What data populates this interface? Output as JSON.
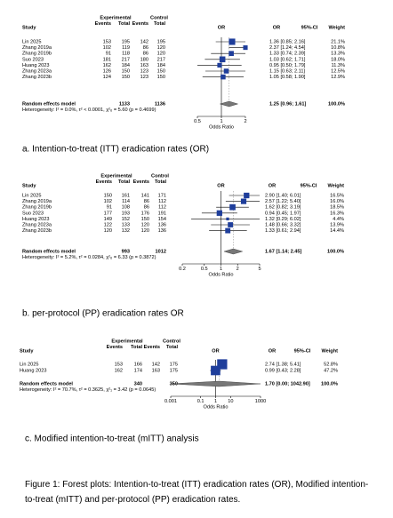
{
  "chart_data": [
    {
      "type": "forest",
      "columns": {
        "experimental": "Experimental",
        "control": "Control",
        "study": "Study",
        "events_e": "Events",
        "total_e": "Total",
        "events_c": "Events",
        "total_c": "Total",
        "plot": "OR",
        "or": "OR",
        "ci": "95%-CI",
        "weight": "Weight"
      },
      "studies": [
        {
          "name": "Lin 2025",
          "e_events": 153,
          "e_total": 195,
          "c_events": 142,
          "c_total": 195,
          "or": 1.36,
          "ci": [
            0.85,
            2.16
          ],
          "label": "1.36 [0.85; 2.16]",
          "weight": 21.1,
          "weight_label": "21.1%"
        },
        {
          "name": "Zhang 2019a",
          "e_events": 102,
          "e_total": 119,
          "c_events": 86,
          "c_total": 120,
          "or": 2.37,
          "ci": [
            1.24,
            4.54
          ],
          "label": "2.37 [1.24; 4.54]",
          "weight": 10.8,
          "weight_label": "10.8%"
        },
        {
          "name": "Zhang 2019b",
          "e_events": 91,
          "e_total": 118,
          "c_events": 86,
          "c_total": 120,
          "or": 1.33,
          "ci": [
            0.74,
            2.39
          ],
          "label": "1.33 [0.74; 2.39]",
          "weight": 13.3,
          "weight_label": "13.3%"
        },
        {
          "name": "Suo 2023",
          "e_events": 181,
          "e_total": 217,
          "c_events": 180,
          "c_total": 217,
          "or": 1.03,
          "ci": [
            0.62,
            1.71
          ],
          "label": "1.03 [0.62; 1.71]",
          "weight": 18.0,
          "weight_label": "18.0%"
        },
        {
          "name": "Huang 2023",
          "e_events": 162,
          "e_total": 184,
          "c_events": 163,
          "c_total": 184,
          "or": 0.95,
          "ci": [
            0.5,
            1.79
          ],
          "label": "0.95 [0.50; 1.79]",
          "weight": 11.3,
          "weight_label": "11.3%"
        },
        {
          "name": "Zhang 2023a",
          "e_events": 126,
          "e_total": 150,
          "c_events": 123,
          "c_total": 150,
          "or": 1.15,
          "ci": [
            0.63,
            2.11
          ],
          "label": "1.15 [0.63; 2.11]",
          "weight": 12.5,
          "weight_label": "12.5%"
        },
        {
          "name": "Zhang 2023b",
          "e_events": 124,
          "e_total": 150,
          "c_events": 123,
          "c_total": 150,
          "or": 1.05,
          "ci": [
            0.58,
            1.9
          ],
          "label": "1.05 [0.58; 1.90]",
          "weight": 12.9,
          "weight_label": "12.9%"
        }
      ],
      "pooled": {
        "name": "Random effects model",
        "e_total": 1133,
        "c_total": 1136,
        "or": 1.25,
        "ci": [
          0.96,
          1.61
        ],
        "label": "1.25 [0.96; 1.61]",
        "weight_label": "100.0%"
      },
      "heterogeneity": "Heterogeneity: I² = 0.0%, τ² < 0.0001, χ²₆ = 5.60 (p = 0.4699)",
      "log_scale": true,
      "xlim": [
        0.5,
        2
      ],
      "xticks": [
        0.5,
        1,
        2
      ],
      "xlabel": "Odds Ratio",
      "color": "#1f3e9b",
      "caption": "a. Intention-to-treat (ITT) eradication rates (OR)"
    },
    {
      "type": "forest",
      "columns": {
        "experimental": "Experimental",
        "control": "Control",
        "study": "Study",
        "events_e": "Events",
        "total_e": "Total",
        "events_c": "Events",
        "total_c": "Total",
        "plot": "OR",
        "or": "OR",
        "ci": "95%-CI",
        "weight": "Weight"
      },
      "studies": [
        {
          "name": "Lin 2025",
          "e_events": 150,
          "e_total": 161,
          "c_events": 141,
          "c_total": 171,
          "or": 2.9,
          "ci": [
            1.4,
            6.01
          ],
          "label": "2.90 [1.40; 6.01]",
          "weight": 16.5,
          "weight_label": "16.5%"
        },
        {
          "name": "Zhang 2019a",
          "e_events": 102,
          "e_total": 114,
          "c_events": 86,
          "c_total": 112,
          "or": 2.57,
          "ci": [
            1.22,
            5.4
          ],
          "label": "2.57 [1.22; 5.40]",
          "weight": 16.0,
          "weight_label": "16.0%"
        },
        {
          "name": "Zhang 2019b",
          "e_events": 91,
          "e_total": 108,
          "c_events": 86,
          "c_total": 112,
          "or": 1.62,
          "ci": [
            0.82,
            3.19
          ],
          "label": "1.62 [0.82; 3.19]",
          "weight": 18.5,
          "weight_label": "18.5%"
        },
        {
          "name": "Suo 2023",
          "e_events": 177,
          "e_total": 193,
          "c_events": 176,
          "c_total": 191,
          "or": 0.94,
          "ci": [
            0.45,
            1.97
          ],
          "label": "0.94 [0.45; 1.97]",
          "weight": 16.3,
          "weight_label": "16.3%"
        },
        {
          "name": "Huang 2023",
          "e_events": 149,
          "e_total": 152,
          "c_events": 150,
          "c_total": 154,
          "or": 1.32,
          "ci": [
            0.29,
            6.02
          ],
          "label": "1.32 [0.29; 6.02]",
          "weight": 4.4,
          "weight_label": "4.4%"
        },
        {
          "name": "Zhang 2023a",
          "e_events": 122,
          "e_total": 133,
          "c_events": 120,
          "c_total": 136,
          "or": 1.48,
          "ci": [
            0.66,
            3.32
          ],
          "label": "1.48 [0.66; 3.32]",
          "weight": 13.9,
          "weight_label": "13.9%"
        },
        {
          "name": "Zhang 2023b",
          "e_events": 120,
          "e_total": 132,
          "c_events": 120,
          "c_total": 136,
          "or": 1.33,
          "ci": [
            0.61,
            2.94
          ],
          "label": "1.33 [0.61; 2.94]",
          "weight": 14.4,
          "weight_label": "14.4%"
        }
      ],
      "pooled": {
        "name": "Random effects model",
        "e_total": 993,
        "c_total": 1012,
        "or": 1.67,
        "ci": [
          1.14,
          2.45
        ],
        "label": "1.67 [1.14; 2.45]",
        "weight_label": "100.0%"
      },
      "heterogeneity": "Heterogeneity: I² = 5.2%, τ² = 0.0284, χ²₆ = 6.33 (p = 0.3872)",
      "log_scale": true,
      "xlim": [
        0.2,
        5
      ],
      "xticks": [
        0.2,
        0.5,
        1,
        2,
        5
      ],
      "xlabel": "Odds Ratio",
      "color": "#1f3e9b",
      "caption": "b. per-protocol (PP) eradication rates OR"
    },
    {
      "type": "forest",
      "columns": {
        "experimental": "Experimental",
        "control": "Control",
        "study": "Study",
        "events_e": "Events",
        "total_e": "Total",
        "events_c": "Events",
        "total_c": "Total",
        "plot": "OR",
        "or": "OR",
        "ci": "95%-CI",
        "weight": "Weight"
      },
      "studies": [
        {
          "name": "Lin 2025",
          "e_events": 153,
          "e_total": 166,
          "c_events": 142,
          "c_total": 175,
          "or": 2.74,
          "ci": [
            1.38,
            5.41
          ],
          "label": "2.74 [1.38; 5.41]",
          "weight": 52.8,
          "weight_label": "52.8%"
        },
        {
          "name": "Huang 2023",
          "e_events": 162,
          "e_total": 174,
          "c_events": 163,
          "c_total": 175,
          "or": 0.99,
          "ci": [
            0.43,
            2.28
          ],
          "label": "0.99 [0.43; 2.28]",
          "weight": 47.2,
          "weight_label": "47.2%"
        }
      ],
      "pooled": {
        "name": "Random effects model",
        "e_total": 340,
        "c_total": 350,
        "or": 1.7,
        "ci": [
          0.0,
          1042.9
        ],
        "label": "1.70 [0.00; 1042.90]",
        "weight_label": "100.0%"
      },
      "heterogeneity": "Heterogeneity: I² = 70.7%, τ² = 0.3625, χ²₁ = 3.42 (p = 0.0645)",
      "log_scale": true,
      "xlim": [
        0.001,
        1000
      ],
      "xticks": [
        0.001,
        0.1,
        1,
        10,
        1000
      ],
      "xlabel": "Odds Ratio",
      "color": "#1f3e9b",
      "caption": "c.  Modified intention-to-treat (mITT) analysis"
    }
  ],
  "figure_caption": "Figure 1: Forest plots: Intention-to-treat (ITT) eradication rates (OR), Modified intention-to-treat (mITT) and per-protocol (PP) eradication rates."
}
